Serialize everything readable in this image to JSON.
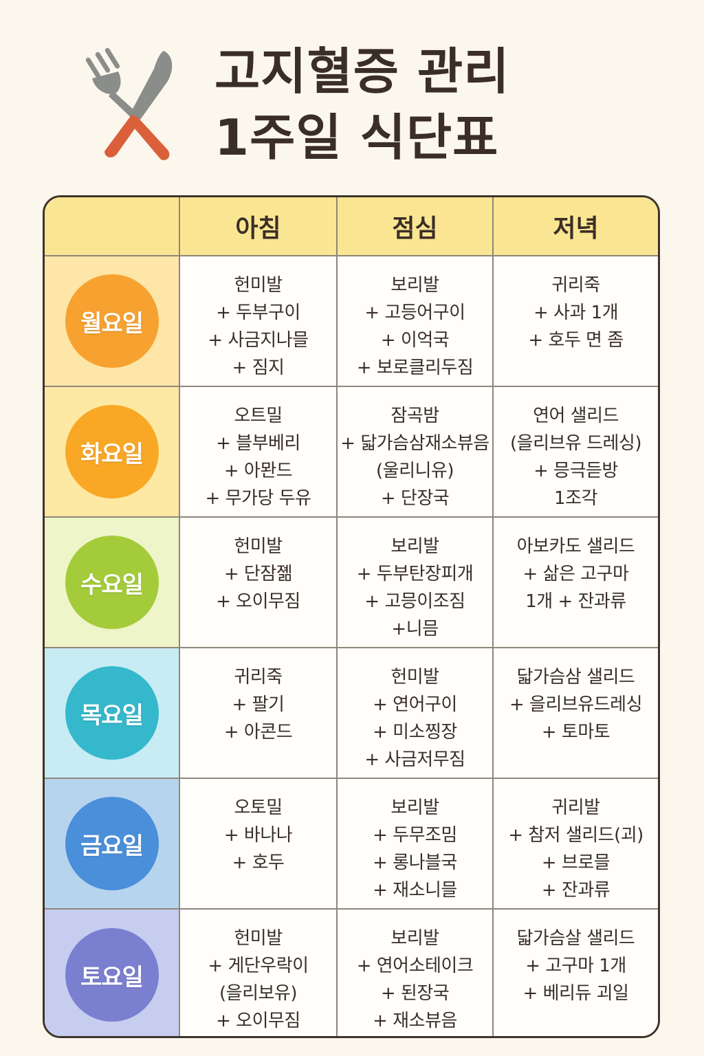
{
  "header": {
    "title_line1": "고지혈증 관리",
    "title_line2": "1주일 식단표",
    "icon": "fork-knife-icon"
  },
  "table": {
    "columns": [
      "아침",
      "점심",
      "저녁"
    ],
    "header_color": "#fae592",
    "rows": [
      {
        "day": "월요일",
        "circle_color": "#f7a230",
        "row_bg": "#fde6a7",
        "breakfast": [
          "헌미발",
          "+ 두부구이",
          "+ 사금지나믈",
          "+ 짐지"
        ],
        "lunch": [
          "보리발",
          "+ 고등어구이",
          "+ 이억국",
          "+ 보로클리두짐"
        ],
        "dinner": [
          "귀리죽",
          "+ 사과 1개",
          "+ 호두 면 좀"
        ]
      },
      {
        "day": "화요일",
        "circle_color": "#f9a825",
        "row_bg": "#fde9a3",
        "breakfast": [
          "오트밀",
          "+ 블부베리",
          "+ 아뫈드",
          "+ 무가당 두유"
        ],
        "lunch": [
          "잠곡밤",
          "+ 닯가슴삼재소뷰음",
          "(울리니유)",
          "+ 단장국"
        ],
        "dinner": [
          "연어 샐리드",
          "(을리브유 드레싱)",
          "+ 믕극듣방",
          "1조각"
        ]
      },
      {
        "day": "수요일",
        "circle_color": "#a4cc3a",
        "row_bg": "#eef5c8",
        "breakfast": [
          "헌미발",
          "+ 단잠졞",
          "+ 오이무짐"
        ],
        "lunch": [
          "보리발",
          "+ 두부탄장피개",
          "+ 고믕이조짐",
          "+니믐"
        ],
        "dinner": [
          "아보카도 샐리드",
          "+ 삶은 고구마",
          "1개 + 잔과류"
        ]
      },
      {
        "day": "목요일",
        "circle_color": "#35b8cc",
        "row_bg": "#c8ecf4",
        "breakfast": [
          "귀리죽",
          "+ 팔기",
          "+ 아콘드"
        ],
        "lunch": [
          "헌미발",
          "+ 연어구이",
          "+ 미소찡장",
          "+ 사금저무짐"
        ],
        "dinner": [
          "닯가슴삼 샐리드",
          "+ 을리브유드레싱",
          "+ 토마토"
        ]
      },
      {
        "day": "금요일",
        "circle_color": "#4a8fd9",
        "row_bg": "#b7d4ee",
        "breakfast": [
          "오토밀",
          "+ 바나나",
          "+ 호두"
        ],
        "lunch": [
          "보리발",
          "+ 두무조밈",
          "+ 롱나블국",
          "+ 재소니믈"
        ],
        "dinner": [
          "귀리발",
          "+ 참저 샐리드(괴)",
          "+ 브로믈",
          "+ 잔과류"
        ]
      },
      {
        "day": "토요일",
        "circle_color": "#7b7fcf",
        "row_bg": "#c6cdef",
        "breakfast": [
          "헌미발",
          "+ 게단우락이",
          "(을리보유)",
          "+ 오이무짐"
        ],
        "lunch": [
          "보리발",
          "+ 연어소테이크",
          "+ 된장국",
          "+ 재소뷰음"
        ],
        "dinner": [
          "닯가슴살 샐리드",
          "+ 고구마 1개",
          "+ 베리듀 괴일"
        ]
      }
    ]
  }
}
